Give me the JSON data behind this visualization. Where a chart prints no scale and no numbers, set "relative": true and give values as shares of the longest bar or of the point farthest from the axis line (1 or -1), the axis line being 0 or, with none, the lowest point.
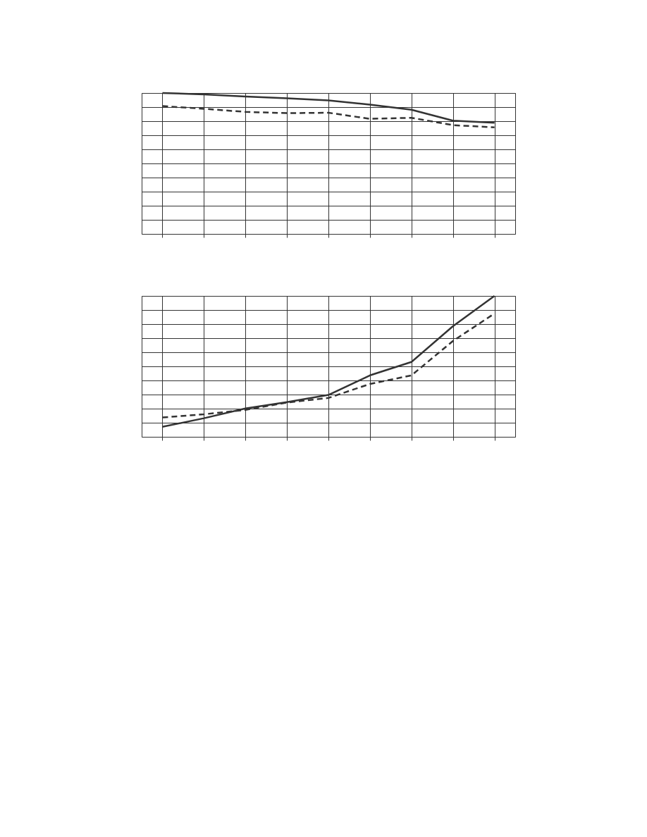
{
  "chart_data": [
    {
      "type": "line",
      "relative": true,
      "categories": [
        null,
        null,
        null,
        null,
        null,
        null,
        null,
        null,
        null
      ],
      "grid": true,
      "tick_labels": false,
      "series": [
        {
          "color": "#333333",
          "line_style": "solid",
          "values": [
            1,
            0.99,
            0.975,
            0.963,
            0.947,
            0.918,
            0.881,
            0.804,
            0.789
          ]
        },
        {
          "color": "#333333",
          "line_style": "dashed",
          "values": [
            0.907,
            0.888,
            0.866,
            0.857,
            0.86,
            0.817,
            0.824,
            0.772,
            0.756
          ]
        }
      ]
    },
    {
      "type": "line",
      "relative": true,
      "categories": [
        null,
        null,
        null,
        null,
        null,
        null,
        null,
        null,
        null
      ],
      "grid": true,
      "tick_labels": false,
      "series": [
        {
          "color": "#333333",
          "line_style": "solid",
          "values": [
            0.071,
            0.132,
            0.201,
            0.246,
            0.297,
            0.436,
            0.531,
            0.785,
            1
          ]
        },
        {
          "color": "#333333",
          "line_style": "dashed",
          "values": [
            0.137,
            0.16,
            0.191,
            0.243,
            0.276,
            0.375,
            0.436,
            0.68,
            0.875
          ]
        }
      ]
    }
  ]
}
